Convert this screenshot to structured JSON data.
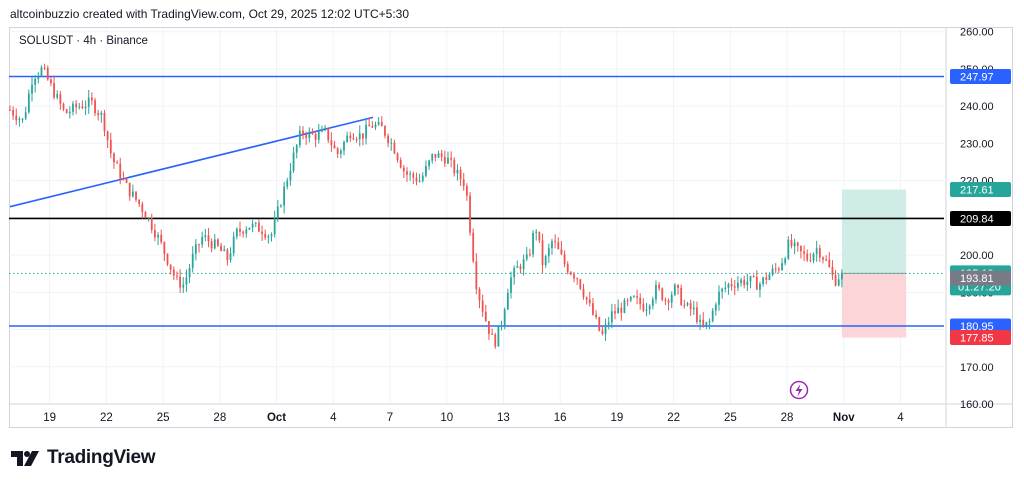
{
  "header": {
    "text": "altcoinbuzzio created with TradingView.com, Oct 29, 2025 12:02 UTC+5:30"
  },
  "symbol": {
    "text": "SOLUSDT · 4h · Binance"
  },
  "footer": {
    "brand": "TradingView",
    "logo_icon": "tradingview-logo-icon"
  },
  "colors": {
    "up": "#26a69a",
    "down": "#ef5350",
    "trendline": "#2962ff",
    "blue_level": "#2962ff",
    "black_level": "#000000",
    "target_zone": "#cfece6",
    "stop_zone": "#fbd5d8",
    "last_price": "#26a69a"
  },
  "chart_data": {
    "type": "candlestick",
    "title": "SOLUSDT · 4h · Binance",
    "ylim": [
      160,
      261
    ],
    "yticks": [
      160,
      170,
      180,
      190,
      200,
      210,
      220,
      230,
      240,
      250,
      260
    ],
    "ytick_labels": [
      "160.00",
      "170.00",
      "180.00",
      "190.00",
      "200.00",
      "210.00",
      "220.00",
      "230.00",
      "240.00",
      "250.00",
      "260.00"
    ],
    "xticks": [
      {
        "label": "19",
        "day": 0
      },
      {
        "label": "22",
        "day": 3
      },
      {
        "label": "25",
        "day": 6
      },
      {
        "label": "28",
        "day": 9
      },
      {
        "label": "Oct",
        "day": 12
      },
      {
        "label": "4",
        "day": 15
      },
      {
        "label": "7",
        "day": 18
      },
      {
        "label": "10",
        "day": 21
      },
      {
        "label": "13",
        "day": 24
      },
      {
        "label": "16",
        "day": 27
      },
      {
        "label": "19",
        "day": 30
      },
      {
        "label": "22",
        "day": 33
      },
      {
        "label": "25",
        "day": 36
      },
      {
        "label": "28",
        "day": 39
      },
      {
        "label": "Nov",
        "day": 42
      },
      {
        "label": "4",
        "day": 45
      }
    ],
    "xlim_days": [
      -2.15,
      47.3
    ],
    "price_path": [
      [
        -2.1,
        239
      ],
      [
        -1.4,
        236
      ],
      [
        -0.9,
        248
      ],
      [
        -0.4,
        250
      ],
      [
        0.2,
        244
      ],
      [
        0.8,
        238
      ],
      [
        1.5,
        240
      ],
      [
        2.2,
        241
      ],
      [
        2.8,
        237
      ],
      [
        3.3,
        226
      ],
      [
        4.1,
        218
      ],
      [
        4.7,
        214
      ],
      [
        5.2,
        210
      ],
      [
        5.8,
        204
      ],
      [
        6.3,
        198
      ],
      [
        6.7,
        193
      ],
      [
        7.1,
        192
      ],
      [
        7.6,
        200
      ],
      [
        8.1,
        205
      ],
      [
        8.9,
        202
      ],
      [
        9.4,
        199
      ],
      [
        9.9,
        206
      ],
      [
        10.5,
        208
      ],
      [
        11.2,
        207
      ],
      [
        11.7,
        205
      ],
      [
        12.2,
        214
      ],
      [
        12.8,
        225
      ],
      [
        13.3,
        233
      ],
      [
        14.0,
        232
      ],
      [
        14.6,
        233
      ],
      [
        15.2,
        227
      ],
      [
        15.9,
        233
      ],
      [
        16.5,
        232
      ],
      [
        17.0,
        235
      ],
      [
        17.6,
        234
      ],
      [
        18.2,
        229
      ],
      [
        18.8,
        222
      ],
      [
        19.6,
        220
      ],
      [
        20.3,
        227
      ],
      [
        21.0,
        226
      ],
      [
        21.5,
        222
      ],
      [
        22.0,
        219
      ],
      [
        22.3,
        204
      ],
      [
        22.6,
        191
      ],
      [
        23.1,
        182
      ],
      [
        23.5,
        176
      ],
      [
        23.9,
        182
      ],
      [
        24.3,
        193
      ],
      [
        24.8,
        197
      ],
      [
        25.3,
        199
      ],
      [
        25.7,
        208
      ],
      [
        26.1,
        197
      ],
      [
        26.6,
        204
      ],
      [
        27.3,
        197
      ],
      [
        27.9,
        194
      ],
      [
        28.4,
        188
      ],
      [
        28.9,
        182
      ],
      [
        29.2,
        178
      ],
      [
        29.7,
        184
      ],
      [
        30.3,
        186
      ],
      [
        30.9,
        188
      ],
      [
        31.5,
        186
      ],
      [
        32.1,
        191
      ],
      [
        32.6,
        188
      ],
      [
        33.1,
        191
      ],
      [
        33.6,
        186
      ],
      [
        34.1,
        185
      ],
      [
        34.5,
        180
      ],
      [
        34.9,
        182
      ],
      [
        35.3,
        189
      ],
      [
        35.9,
        192
      ],
      [
        36.5,
        193
      ],
      [
        37.1,
        193
      ],
      [
        37.5,
        192
      ],
      [
        38.1,
        195
      ],
      [
        38.6,
        197
      ],
      [
        39.1,
        203
      ],
      [
        39.6,
        201
      ],
      [
        40.1,
        199
      ],
      [
        40.6,
        202
      ],
      [
        41.1,
        198
      ],
      [
        41.5,
        193
      ],
      [
        41.9,
        195.1
      ]
    ],
    "last_price": 195.1,
    "countdown": "01:27:20",
    "horizontal_levels": [
      {
        "value": 247.97,
        "label": "247.97",
        "color": "#2962ff",
        "style": "blue"
      },
      {
        "value": 209.84,
        "label": "209.84",
        "color": "#000000",
        "style": "black"
      },
      {
        "value": 180.95,
        "label": "180.95",
        "color": "#2962ff",
        "style": "blue"
      }
    ],
    "trendline": {
      "from": {
        "day": -2.1,
        "value": 213
      },
      "to": {
        "day": 17.1,
        "value": 237
      }
    },
    "position": {
      "start_day": 41.9,
      "end_day": 45.3,
      "entry": 195.1,
      "target": 217.61,
      "stop": 177.85
    },
    "price_labels": [
      {
        "value": 247.97,
        "text": "247.97",
        "bg": "#2962ff"
      },
      {
        "value": 217.61,
        "text": "217.61",
        "bg": "#26a69a"
      },
      {
        "value": 209.84,
        "text": "209.84",
        "bg": "#000000"
      },
      {
        "value": 195.1,
        "text": "195.10",
        "bg": "#26a69a"
      },
      {
        "value": 193.81,
        "text": "193.81",
        "bg": "#787b86"
      },
      {
        "value": 180.95,
        "text": "180.95",
        "bg": "#2962ff"
      },
      {
        "value": 177.85,
        "text": "177.85",
        "bg": "#f23645"
      }
    ],
    "grid": true
  }
}
